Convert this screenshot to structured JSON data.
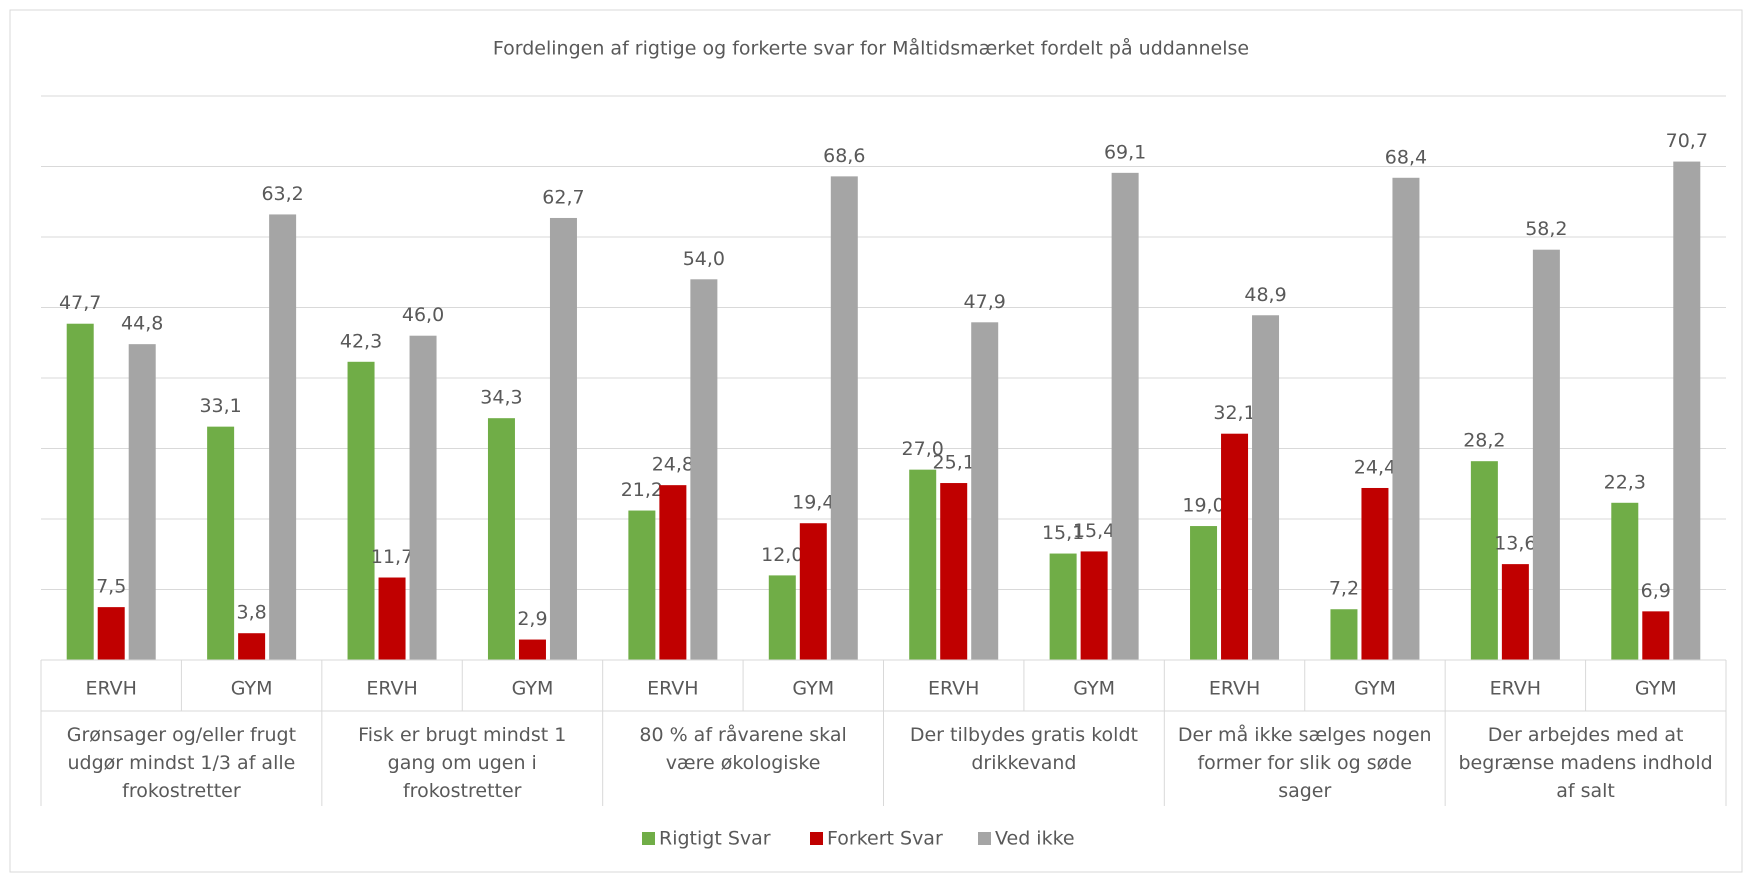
{
  "chart_data": {
    "type": "bar",
    "title": "Fordelingen af rigtige og forkerte svar for Måltidsmærket fordelt på uddannelse",
    "categories": [
      "ERVH",
      "GYM",
      "ERVH",
      "GYM",
      "ERVH",
      "GYM",
      "ERVH",
      "GYM",
      "ERVH",
      "GYM",
      "ERVH",
      "GYM"
    ],
    "groups": [
      "Grønsager og/eller frugt udgør mindst 1/3 af alle frokostretter",
      "Fisk er brugt mindst 1 gang om ugen i frokostretter",
      "80 % af råvarene skal være økologiske",
      "Der tilbydes gratis koldt drikkevand",
      "Der må ikke sælges nogen former for slik og søde sager",
      "Der arbejdes med at begrænse madens indhold af salt"
    ],
    "series": [
      {
        "name": "Rigtigt Svar",
        "color": "#70ad47",
        "values": [
          47.7,
          33.1,
          42.3,
          34.3,
          21.2,
          12.0,
          27.0,
          15.1,
          19.0,
          7.2,
          28.2,
          22.3
        ],
        "value_labels": [
          "47,7",
          "33,1",
          "42,3",
          "34,3",
          "21,2",
          "12,0",
          "27,0",
          "15,1",
          "19,0",
          "7,2",
          "28,2",
          "22,3"
        ]
      },
      {
        "name": "Forkert Svar",
        "color": "#c00000",
        "values": [
          7.5,
          3.8,
          11.7,
          2.9,
          24.8,
          19.4,
          25.1,
          15.4,
          32.1,
          24.4,
          13.6,
          6.9
        ],
        "value_labels": [
          "7,5",
          "3,8",
          "11,7",
          "2,9",
          "24,8",
          "19,4",
          "25,1",
          "15,4",
          "32,1",
          "24,4",
          "13,6",
          "6,9"
        ]
      },
      {
        "name": "Ved ikke",
        "color": "#a5a5a5",
        "values": [
          44.8,
          63.2,
          46.0,
          62.7,
          54.0,
          68.6,
          47.9,
          69.1,
          48.9,
          68.4,
          58.2,
          70.7
        ],
        "value_labels": [
          "44,8",
          "63,2",
          "46,0",
          "62,7",
          "54,0",
          "68,6",
          "47,9",
          "69,1",
          "48,9",
          "68,4",
          "58,2",
          "70,7"
        ]
      }
    ],
    "ylim": [
      0,
      80
    ],
    "yticks": [
      0,
      10,
      20,
      30,
      40,
      50,
      60,
      70,
      80
    ],
    "grid": true,
    "legend": "bottom"
  }
}
